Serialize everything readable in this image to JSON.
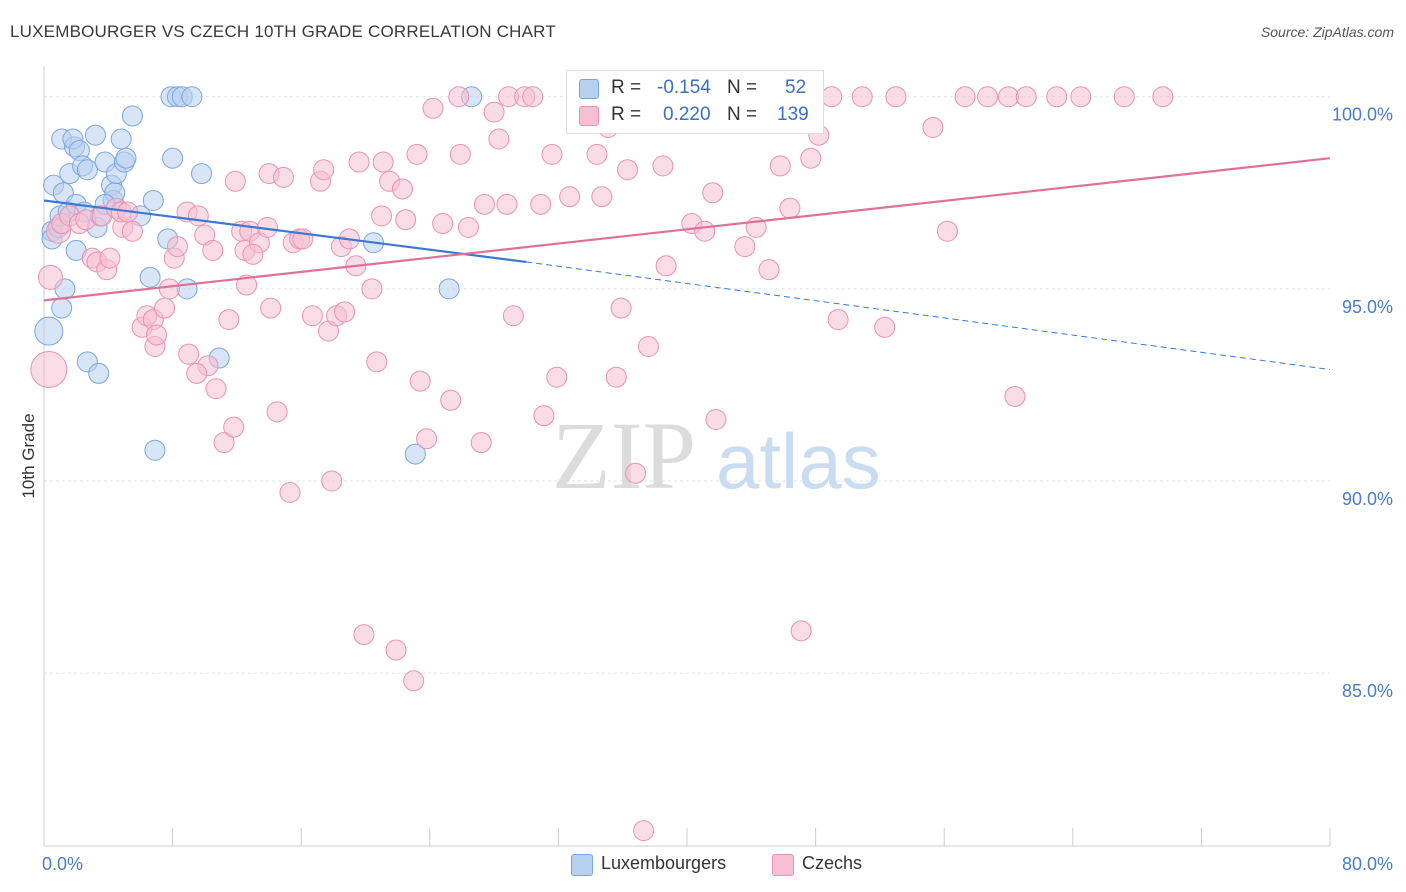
{
  "title": "LUXEMBOURGER VS CZECH 10TH GRADE CORRELATION CHART",
  "source": "Source: ZipAtlas.com",
  "watermark": {
    "zip": "ZIP",
    "atlas": "atlas"
  },
  "colors": {
    "blue_fill": "#b8d0f0",
    "blue_stroke": "#7aa6e0",
    "blue_line": "#3a78d4",
    "pink_fill": "#f6c0d2",
    "pink_stroke": "#eb91b1",
    "pink_line": "#e0709a",
    "axis_text": "#4a7cc9",
    "grid": "#dde3ea"
  },
  "legend_top": {
    "rows": [
      {
        "swatch": "blue",
        "r_label": "R =",
        "r_value": "-0.154",
        "n_label": "N =",
        "n_value": "52"
      },
      {
        "swatch": "pink",
        "r_label": "R =",
        "r_value": "0.220",
        "n_label": "N =",
        "n_value": "139"
      }
    ]
  },
  "legend_bottom": [
    {
      "swatch": "blue",
      "label": "Luxembourgers"
    },
    {
      "swatch": "pink",
      "label": "Czechs"
    }
  ],
  "chart_data": {
    "type": "scatter",
    "title": "LUXEMBOURGER VS CZECH 10TH GRADE CORRELATION CHART",
    "xlabel": "",
    "ylabel": "10th Grade",
    "xlim": [
      0,
      80
    ],
    "ylim": [
      80.5,
      100.8
    ],
    "x_tick_labels": [
      {
        "value": 0,
        "label": "0.0%"
      },
      {
        "value": 80,
        "label": "80.0%"
      }
    ],
    "y_tick_labels": [
      {
        "value": 100,
        "label": "100.0%"
      },
      {
        "value": 95,
        "label": "95.0%"
      },
      {
        "value": 90,
        "label": "90.0%"
      },
      {
        "value": 85,
        "label": "85.0%"
      }
    ],
    "grid": true,
    "series": [
      {
        "name": "Luxembourgers",
        "color": "blue",
        "trend": {
          "x0": 0,
          "y0": 97.3,
          "x1": 30,
          "y1": 95.7,
          "dash_to_x": 80,
          "dash_to_y": 92.9
        },
        "points": [
          [
            0.5,
            96.5
          ],
          [
            0.6,
            97.7
          ],
          [
            0.5,
            96.3
          ],
          [
            0.9,
            96.6
          ],
          [
            1.0,
            96.9
          ],
          [
            1.2,
            97.5
          ],
          [
            1.1,
            98.9
          ],
          [
            1.5,
            97.0
          ],
          [
            1.6,
            98.0
          ],
          [
            1.9,
            98.7
          ],
          [
            1.8,
            98.9
          ],
          [
            2.0,
            97.2
          ],
          [
            2.2,
            98.6
          ],
          [
            2.4,
            98.2
          ],
          [
            2.7,
            98.1
          ],
          [
            3.2,
            99.0
          ],
          [
            3.3,
            96.6
          ],
          [
            3.5,
            96.9
          ],
          [
            3.8,
            98.3
          ],
          [
            4.2,
            97.7
          ],
          [
            4.3,
            97.3
          ],
          [
            4.4,
            97.5
          ],
          [
            4.5,
            98.0
          ],
          [
            4.8,
            98.9
          ],
          [
            5.0,
            98.3
          ],
          [
            5.1,
            98.4
          ],
          [
            5.5,
            99.5
          ],
          [
            6.0,
            96.9
          ],
          [
            6.6,
            95.3
          ],
          [
            6.8,
            97.3
          ],
          [
            7.7,
            96.3
          ],
          [
            7.9,
            100.0
          ],
          [
            8.0,
            98.4
          ],
          [
            8.3,
            100.0
          ],
          [
            8.6,
            100.0
          ],
          [
            8.9,
            95.0
          ],
          [
            9.2,
            100.0
          ],
          [
            9.8,
            98.0
          ],
          [
            2.0,
            96.0
          ],
          [
            1.1,
            94.5
          ],
          [
            0.3,
            93.9
          ],
          [
            2.7,
            93.1
          ],
          [
            3.4,
            92.8
          ],
          [
            6.9,
            90.8
          ],
          [
            10.9,
            93.2
          ],
          [
            20.5,
            96.2
          ],
          [
            23.1,
            90.7
          ],
          [
            25.2,
            95.0
          ],
          [
            26.6,
            100.0
          ],
          [
            3.8,
            97.2
          ],
          [
            2.5,
            97.0
          ],
          [
            1.3,
            95.0
          ]
        ],
        "sizes": [
          10,
          10,
          10,
          10,
          10,
          10,
          10,
          10,
          10,
          10,
          10,
          10,
          10,
          10,
          10,
          10,
          10,
          10,
          10,
          10,
          10,
          10,
          10,
          10,
          10,
          10,
          10,
          10,
          10,
          10,
          10,
          10,
          10,
          10,
          10,
          10,
          10,
          10,
          10,
          10,
          14,
          10,
          10,
          10,
          10,
          10,
          10,
          10,
          10,
          10,
          10,
          10
        ]
      },
      {
        "name": "Czechs",
        "color": "pink",
        "trend": {
          "x0": 0,
          "y0": 94.7,
          "x1": 80,
          "y1": 98.4
        },
        "points": [
          [
            0.4,
            95.3
          ],
          [
            0.3,
            92.9
          ],
          [
            0.9,
            96.5
          ],
          [
            1.1,
            96.7
          ],
          [
            1.6,
            96.9
          ],
          [
            2.2,
            96.7
          ],
          [
            2.6,
            96.8
          ],
          [
            3.0,
            95.8
          ],
          [
            3.3,
            95.7
          ],
          [
            3.6,
            96.9
          ],
          [
            3.9,
            95.5
          ],
          [
            4.1,
            95.8
          ],
          [
            4.5,
            97.1
          ],
          [
            4.9,
            96.6
          ],
          [
            4.8,
            97.0
          ],
          [
            5.5,
            96.5
          ],
          [
            6.1,
            94.0
          ],
          [
            6.4,
            94.3
          ],
          [
            6.8,
            94.2
          ],
          [
            6.9,
            93.5
          ],
          [
            7.5,
            94.5
          ],
          [
            7.8,
            95.0
          ],
          [
            8.1,
            95.8
          ],
          [
            8.3,
            96.1
          ],
          [
            8.9,
            97.0
          ],
          [
            9.0,
            93.3
          ],
          [
            9.6,
            96.9
          ],
          [
            10.0,
            96.4
          ],
          [
            10.2,
            93.0
          ],
          [
            10.5,
            96.0
          ],
          [
            10.7,
            92.4
          ],
          [
            11.2,
            91.0
          ],
          [
            11.5,
            94.2
          ],
          [
            11.8,
            91.4
          ],
          [
            12.3,
            96.5
          ],
          [
            12.5,
            96.0
          ],
          [
            12.6,
            95.1
          ],
          [
            12.8,
            96.5
          ],
          [
            13.4,
            96.2
          ],
          [
            13.9,
            96.6
          ],
          [
            14.0,
            98.0
          ],
          [
            14.1,
            94.5
          ],
          [
            14.5,
            91.8
          ],
          [
            14.9,
            97.9
          ],
          [
            15.3,
            89.7
          ],
          [
            15.5,
            96.2
          ],
          [
            15.9,
            96.3
          ],
          [
            16.1,
            96.3
          ],
          [
            16.7,
            94.3
          ],
          [
            17.2,
            97.8
          ],
          [
            17.4,
            98.1
          ],
          [
            17.7,
            93.9
          ],
          [
            17.9,
            90.0
          ],
          [
            18.2,
            94.3
          ],
          [
            18.5,
            96.1
          ],
          [
            18.7,
            94.4
          ],
          [
            19.4,
            95.6
          ],
          [
            19.6,
            98.3
          ],
          [
            19.9,
            86.0
          ],
          [
            20.4,
            95.0
          ],
          [
            20.7,
            93.1
          ],
          [
            21.1,
            98.3
          ],
          [
            21.5,
            97.8
          ],
          [
            21.9,
            85.6
          ],
          [
            22.3,
            97.6
          ],
          [
            22.5,
            96.8
          ],
          [
            23.0,
            84.8
          ],
          [
            23.2,
            98.5
          ],
          [
            23.4,
            92.6
          ],
          [
            23.8,
            91.1
          ],
          [
            24.2,
            99.7
          ],
          [
            24.8,
            96.7
          ],
          [
            25.3,
            92.1
          ],
          [
            25.8,
            100.0
          ],
          [
            25.9,
            98.5
          ],
          [
            26.4,
            96.6
          ],
          [
            27.2,
            91.0
          ],
          [
            27.4,
            97.2
          ],
          [
            28.0,
            99.6
          ],
          [
            28.3,
            98.9
          ],
          [
            28.9,
            100.0
          ],
          [
            28.8,
            97.2
          ],
          [
            29.2,
            94.3
          ],
          [
            29.9,
            100.0
          ],
          [
            30.4,
            100.0
          ],
          [
            30.9,
            97.2
          ],
          [
            31.1,
            91.7
          ],
          [
            31.6,
            98.5
          ],
          [
            31.9,
            92.7
          ],
          [
            32.7,
            97.4
          ],
          [
            33.2,
            100.0
          ],
          [
            34.4,
            98.5
          ],
          [
            34.7,
            97.4
          ],
          [
            35.6,
            92.7
          ],
          [
            35.9,
            94.5
          ],
          [
            36.3,
            98.1
          ],
          [
            36.8,
            90.2
          ],
          [
            37.6,
            93.5
          ],
          [
            38.5,
            98.2
          ],
          [
            38.7,
            95.6
          ],
          [
            40.3,
            96.7
          ],
          [
            41.1,
            96.5
          ],
          [
            41.6,
            97.5
          ],
          [
            41.8,
            91.6
          ],
          [
            43.1,
            100.0
          ],
          [
            43.6,
            96.1
          ],
          [
            44.3,
            96.6
          ],
          [
            45.1,
            95.5
          ],
          [
            45.8,
            98.2
          ],
          [
            46.4,
            97.1
          ],
          [
            47.1,
            86.1
          ],
          [
            47.7,
            98.4
          ],
          [
            48.2,
            99.0
          ],
          [
            49.0,
            100.0
          ],
          [
            49.4,
            94.2
          ],
          [
            50.9,
            100.0
          ],
          [
            52.3,
            94.0
          ],
          [
            53.0,
            100.0
          ],
          [
            55.3,
            99.2
          ],
          [
            56.2,
            96.5
          ],
          [
            57.3,
            100.0
          ],
          [
            58.7,
            100.0
          ],
          [
            60.0,
            100.0
          ],
          [
            60.4,
            92.2
          ],
          [
            61.1,
            100.0
          ],
          [
            63.0,
            100.0
          ],
          [
            64.5,
            100.0
          ],
          [
            67.2,
            100.0
          ],
          [
            69.6,
            100.0
          ],
          [
            37.3,
            80.9
          ],
          [
            35.1,
            99.2
          ],
          [
            40.0,
            100.0
          ],
          [
            5.2,
            97.0
          ],
          [
            7.0,
            93.8
          ],
          [
            9.5,
            92.8
          ],
          [
            11.9,
            97.8
          ],
          [
            13.0,
            95.9
          ],
          [
            19.0,
            96.3
          ],
          [
            21.0,
            96.9
          ]
        ],
        "sizes": [
          12,
          18,
          12,
          10,
          10,
          10,
          10,
          10,
          10,
          10,
          10,
          10,
          10,
          10,
          10,
          10,
          10,
          10,
          10,
          10,
          10,
          10,
          10,
          10,
          10,
          10,
          10,
          10,
          10,
          10,
          10,
          10,
          10,
          10,
          10,
          10,
          10,
          10,
          10,
          10,
          10,
          10,
          10,
          10,
          10,
          10,
          10,
          10,
          10,
          10,
          10,
          10,
          10,
          10,
          10,
          10,
          10,
          10,
          10,
          10,
          10,
          10,
          10,
          10,
          10,
          10,
          10,
          10,
          10,
          10,
          10,
          10,
          10,
          10,
          10,
          10,
          10,
          10,
          10,
          10,
          10,
          10,
          10,
          10,
          10,
          10,
          10,
          10,
          10,
          10,
          10,
          10,
          10,
          10,
          10,
          10,
          10,
          10,
          10,
          10,
          10,
          10,
          10,
          10,
          10,
          10,
          10,
          10,
          10,
          10,
          10,
          10,
          10,
          10,
          10,
          10,
          10,
          10,
          10,
          10,
          10,
          10,
          10,
          10,
          10,
          10,
          10,
          10,
          10,
          10,
          10,
          10,
          10,
          10,
          10,
          10,
          10,
          10,
          10
        ]
      }
    ]
  }
}
